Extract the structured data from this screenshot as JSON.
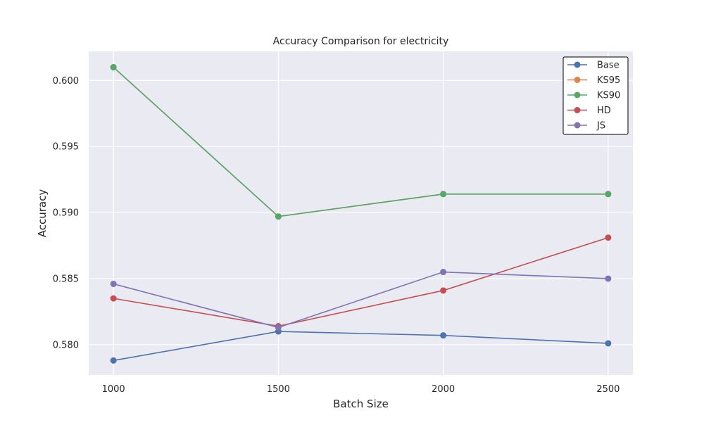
{
  "chart_data": {
    "type": "line",
    "title": "Accuracy Comparison for electricity",
    "xlabel": "Batch Size",
    "ylabel": "Accuracy",
    "x": [
      1000,
      1500,
      2000,
      2500
    ],
    "xticks": [
      "1000",
      "1500",
      "2000",
      "2500"
    ],
    "yticks": [
      "0.580",
      "0.585",
      "0.590",
      "0.595",
      "0.600"
    ],
    "ytick_values": [
      0.58,
      0.585,
      0.59,
      0.595,
      0.6
    ],
    "xlim": [
      925,
      2575
    ],
    "ylim": [
      0.5777,
      0.6022
    ],
    "grid": true,
    "legend_position": "top-right",
    "series": [
      {
        "name": "Base",
        "color": "#4c72b0",
        "values": [
          0.5788,
          0.581,
          0.5807,
          0.5801
        ]
      },
      {
        "name": "KS95",
        "color": "#dd8452",
        "values": [
          0.601,
          0.5897,
          0.5914,
          0.5914
        ]
      },
      {
        "name": "KS90",
        "color": "#55a868",
        "values": [
          0.601,
          0.5897,
          0.5914,
          0.5914
        ]
      },
      {
        "name": "HD",
        "color": "#c44e52",
        "values": [
          0.5835,
          0.5814,
          0.5841,
          0.5881
        ]
      },
      {
        "name": "JS",
        "color": "#8172b3",
        "values": [
          0.5846,
          0.5813,
          0.5855,
          0.585
        ]
      }
    ]
  }
}
